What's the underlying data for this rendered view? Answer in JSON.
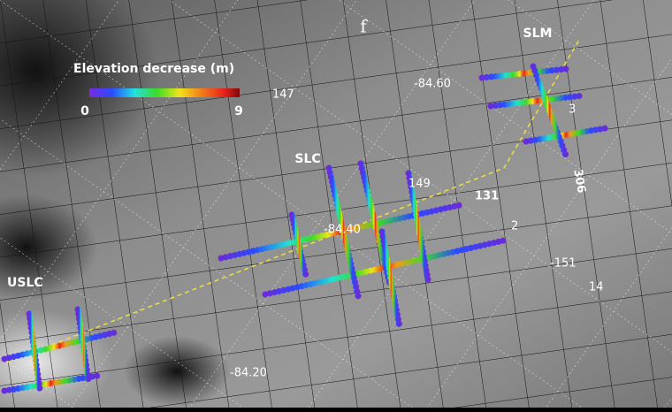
{
  "panel_label": "f",
  "colorbar": {
    "title": "Elevation decrease (m)",
    "min": 0,
    "max": 9
  },
  "sites": [
    "SLM",
    "SLC",
    "USLC"
  ],
  "coordinates": [
    "-84.60",
    "-84.20",
    "-84.40"
  ],
  "tracks": [
    "147",
    "149",
    "131",
    "306",
    "-151",
    "3",
    "2",
    "14"
  ]
}
